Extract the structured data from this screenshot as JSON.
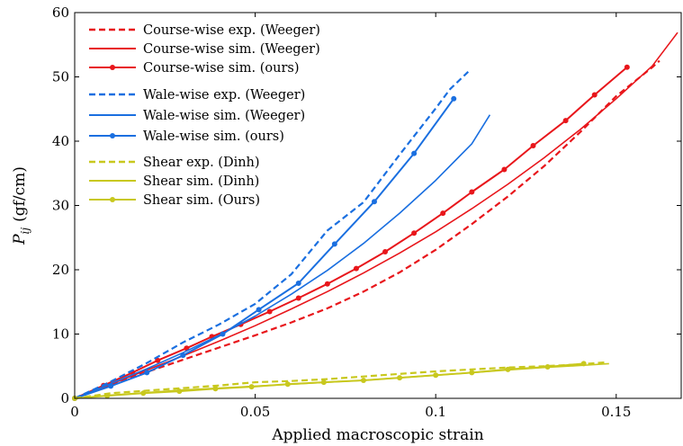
{
  "chart_data": {
    "type": "line",
    "xlabel": "Applied macroscopic strain",
    "ylabel_base": "P",
    "ylabel_sub": "ij",
    "ylabel_unit": "(gf/cm)",
    "xlim": [
      0,
      0.168
    ],
    "ylim": [
      0,
      60
    ],
    "x_ticks": [
      0,
      0.05,
      0.1,
      0.15
    ],
    "x_tick_labels": [
      "0",
      "0.05",
      "0.1",
      "0.15"
    ],
    "y_ticks": [
      0,
      10,
      20,
      30,
      40,
      50,
      60
    ],
    "y_tick_labels": [
      "0",
      "10",
      "20",
      "30",
      "40",
      "50",
      "60"
    ],
    "grid": false,
    "legend_position": "top-left",
    "colors": {
      "course": "#e8161b",
      "wale": "#1a6fe0",
      "shear": "#c8c81e"
    },
    "series": [
      {
        "name": "Course-wise exp. (Weeger)",
        "color": "#e8161b",
        "style": "dashed",
        "markers": false,
        "x": [
          0,
          0.01,
          0.02,
          0.03,
          0.04,
          0.05,
          0.06,
          0.07,
          0.08,
          0.09,
          0.1,
          0.11,
          0.12,
          0.13,
          0.14,
          0.15,
          0.16,
          0.162
        ],
        "y": [
          0,
          2.1,
          4.1,
          6.0,
          7.9,
          9.8,
          11.8,
          14.0,
          16.6,
          19.6,
          23.1,
          27.1,
          31.4,
          36.1,
          41.4,
          47.0,
          51.5,
          52.5
        ]
      },
      {
        "name": "Course-wise sim. (Weeger)",
        "color": "#e8161b",
        "style": "solid",
        "markers": false,
        "x": [
          0,
          0.01,
          0.02,
          0.03,
          0.04,
          0.05,
          0.06,
          0.07,
          0.08,
          0.09,
          0.1,
          0.11,
          0.12,
          0.13,
          0.14,
          0.15,
          0.16,
          0.167
        ],
        "y": [
          0,
          2.2,
          4.4,
          6.6,
          8.9,
          11.3,
          13.9,
          16.6,
          19.5,
          22.6,
          25.9,
          29.5,
          33.3,
          37.4,
          41.8,
          46.6,
          51.7,
          56.9
        ]
      },
      {
        "name": "Course-wise sim. (ours)",
        "color": "#e8161b",
        "style": "solid",
        "markers": true,
        "x": [
          0,
          0.008,
          0.016,
          0.023,
          0.031,
          0.038,
          0.046,
          0.054,
          0.062,
          0.07,
          0.078,
          0.086,
          0.094,
          0.102,
          0.11,
          0.119,
          0.127,
          0.136,
          0.144,
          0.153
        ],
        "y": [
          0,
          2.0,
          4.0,
          5.9,
          7.8,
          9.6,
          11.5,
          13.5,
          15.6,
          17.8,
          20.2,
          22.8,
          25.7,
          28.8,
          32.1,
          35.6,
          39.3,
          43.2,
          47.2,
          51.5
        ]
      },
      {
        "name": "Wale-wise exp. (Weeger)",
        "color": "#1a6fe0",
        "style": "dashed",
        "markers": false,
        "x": [
          0,
          0.01,
          0.02,
          0.03,
          0.04,
          0.05,
          0.06,
          0.07,
          0.08,
          0.09,
          0.1,
          0.104,
          0.109
        ],
        "y": [
          0,
          2.6,
          5.5,
          8.7,
          11.5,
          14.7,
          19.3,
          26.1,
          30.5,
          37.9,
          45.1,
          48.1,
          50.8
        ]
      },
      {
        "name": "Wale-wise sim. (Weeger)",
        "color": "#1a6fe0",
        "style": "solid",
        "markers": false,
        "x": [
          0,
          0.01,
          0.02,
          0.03,
          0.04,
          0.05,
          0.06,
          0.07,
          0.08,
          0.09,
          0.1,
          0.11,
          0.115
        ],
        "y": [
          0,
          2.3,
          4.6,
          7.1,
          9.8,
          12.8,
          16.2,
          19.9,
          24.1,
          28.8,
          33.9,
          39.6,
          44.1
        ]
      },
      {
        "name": "Wale-wise sim. (ours)",
        "color": "#1a6fe0",
        "style": "solid",
        "markers": true,
        "x": [
          0,
          0.01,
          0.02,
          0.03,
          0.041,
          0.051,
          0.062,
          0.072,
          0.083,
          0.094,
          0.105
        ],
        "y": [
          0,
          1.9,
          4.0,
          6.7,
          10.0,
          13.8,
          17.9,
          24.0,
          30.6,
          38.1,
          46.6
        ]
      },
      {
        "name": "Shear exp. (Dinh)",
        "color": "#c8c81e",
        "style": "dashed",
        "markers": false,
        "x": [
          0,
          0.01,
          0.02,
          0.03,
          0.04,
          0.05,
          0.06,
          0.07,
          0.08,
          0.09,
          0.1,
          0.11,
          0.12,
          0.13,
          0.14,
          0.147
        ],
        "y": [
          0,
          0.8,
          1.2,
          1.6,
          2.0,
          2.5,
          2.7,
          3.0,
          3.4,
          3.8,
          4.2,
          4.5,
          4.8,
          5.0,
          5.3,
          5.6
        ]
      },
      {
        "name": "Shear sim. (Dinh)",
        "color": "#c8c81e",
        "style": "solid",
        "markers": false,
        "x": [
          0,
          0.01,
          0.02,
          0.03,
          0.04,
          0.05,
          0.06,
          0.07,
          0.08,
          0.09,
          0.1,
          0.11,
          0.12,
          0.13,
          0.14,
          0.148
        ],
        "y": [
          0,
          0.5,
          0.9,
          1.3,
          1.6,
          1.9,
          2.2,
          2.5,
          2.8,
          3.2,
          3.6,
          4.0,
          4.4,
          4.8,
          5.1,
          5.4
        ]
      },
      {
        "name": "Shear sim. (Ours)",
        "color": "#c8c81e",
        "style": "solid",
        "markers": true,
        "x": [
          0,
          0.009,
          0.019,
          0.029,
          0.039,
          0.049,
          0.059,
          0.069,
          0.08,
          0.09,
          0.1,
          0.11,
          0.12,
          0.131,
          0.141
        ],
        "y": [
          0,
          0.4,
          0.8,
          1.1,
          1.5,
          1.8,
          2.2,
          2.5,
          2.8,
          3.2,
          3.6,
          4.0,
          4.5,
          4.9,
          5.4
        ]
      }
    ]
  }
}
